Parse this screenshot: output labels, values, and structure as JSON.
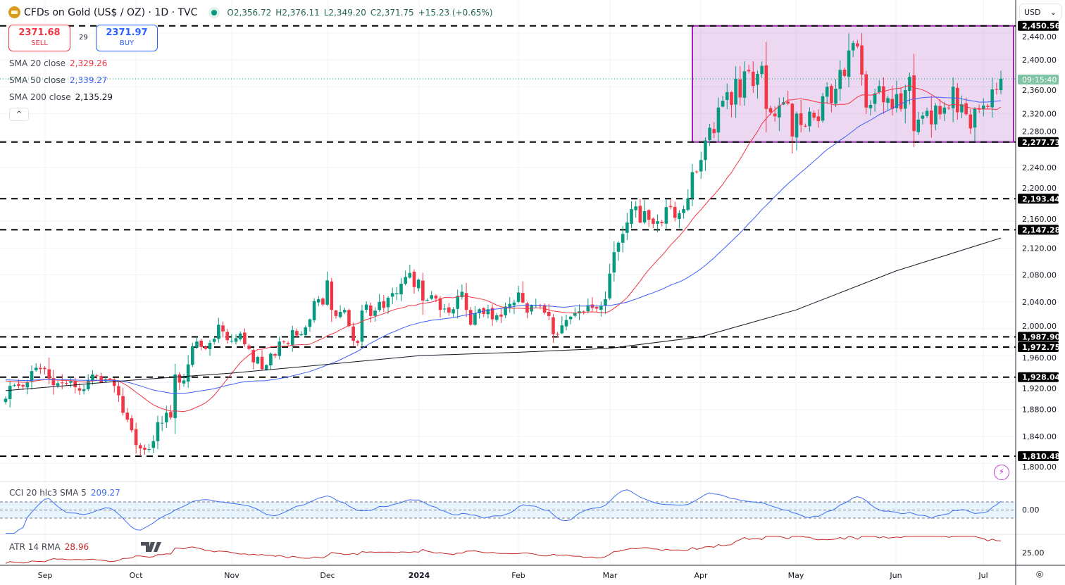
{
  "header": {
    "symbol": "CFDs on Gold (US$ / OZ) · 1D · TVC",
    "open": "O2,356.72",
    "high": "H2,376.11",
    "low": "L2,349.20",
    "close": "C2,371.75",
    "change": "+15.23 (+0.65%)"
  },
  "trade": {
    "sell_price": "2371.68",
    "sell_label": "SELL",
    "spread": "29",
    "buy_price": "2371.97",
    "buy_label": "BUY"
  },
  "legend": {
    "sma20_label": "SMA 20 close",
    "sma20_value": "2,329.26",
    "sma50_label": "SMA 50 close",
    "sma50_value": "2,339.27",
    "sma200_label": "SMA 200 close",
    "sma200_value": "2,135.29",
    "collapse": "^"
  },
  "indicators": {
    "cci_label": "CCI 20 hlc3 SMA 5",
    "cci_value": "209.27",
    "cci_tick": "0.00",
    "atr_label": "ATR 14 RMA",
    "atr_value": "28.96",
    "atr_tick": "25.00"
  },
  "currency": "USD",
  "countdown": "09:15:40",
  "colors": {
    "up": "#089981",
    "down": "#f23645",
    "sma20": "#f23645",
    "sma50": "#3f5efb",
    "sma200": "#131722",
    "cci": "#3f6ff5",
    "atr": "#c62828",
    "zone": "#9c27b0"
  },
  "chart_data": {
    "type": "candlestick",
    "y_ticks": [
      "2,440.00",
      "2,400.00",
      "2,360.00",
      "2,320.00",
      "2,280.00",
      "2,240.00",
      "2,200.00",
      "2,160.00",
      "2,120.00",
      "2,080.00",
      "2,040.00",
      "2,000.00",
      "1,960.00",
      "1,920.00",
      "1,880.00",
      "1,840.00",
      "1,800.00"
    ],
    "x_ticks": [
      "Sep",
      "Oct",
      "Nov",
      "Dec",
      "2024",
      "Feb",
      "Mar",
      "Apr",
      "May",
      "Jun",
      "Jul"
    ],
    "closes": [
      1896,
      1915,
      1916,
      1915,
      1914,
      1920,
      1937,
      1942,
      1940,
      1940,
      1926,
      1916,
      1919,
      1919,
      1919,
      1922,
      1913,
      1908,
      1910,
      1924,
      1932,
      1930,
      1920,
      1925,
      1925,
      1915,
      1901,
      1875,
      1865,
      1849,
      1827,
      1822,
      1820,
      1821,
      1833,
      1861,
      1860,
      1875,
      1868,
      1932,
      1920,
      1923,
      1947,
      1974,
      1981,
      1973,
      1970,
      1979,
      1985,
      2006,
      1996,
      1983,
      1982,
      1986,
      1993,
      1977,
      1970,
      1950,
      1958,
      1940,
      1946,
      1963,
      1960,
      1981,
      1980,
      1977,
      1998,
      1990,
      1992,
      2002,
      2014,
      2041,
      2044,
      2036,
      2072,
      2028,
      2019,
      2025,
      2028,
      2004,
      1982,
      1979,
      2027,
      2036,
      2019,
      2027,
      2040,
      2031,
      2046,
      2053,
      2053,
      2067,
      2077,
      2083,
      2062,
      2073,
      2042,
      2043,
      2050,
      2045,
      2028,
      2030,
      2024,
      2029,
      2049,
      2055,
      2028,
      2006,
      2023,
      2029,
      2022,
      2029,
      2014,
      2020,
      2018,
      2033,
      2037,
      2039,
      2054,
      2039,
      2024,
      2035,
      2035,
      2034,
      2024,
      2019,
      1992,
      1992,
      2005,
      2013,
      2018,
      2024,
      2026,
      2025,
      2035,
      2031,
      2030,
      2034,
      2044,
      2082,
      2114,
      2128,
      2141,
      2158,
      2178,
      2182,
      2158,
      2175,
      2162,
      2156,
      2160,
      2157,
      2181,
      2181,
      2165,
      2172,
      2178,
      2194,
      2233,
      2233,
      2251,
      2280,
      2299,
      2291,
      2329,
      2339,
      2352,
      2333,
      2372,
      2344,
      2383,
      2383,
      2361,
      2379,
      2391,
      2327,
      2322,
      2316,
      2332,
      2337,
      2335,
      2286,
      2320,
      2303,
      2301,
      2323,
      2314,
      2309,
      2346,
      2360,
      2336,
      2357,
      2385,
      2376,
      2414,
      2425,
      2420,
      2378,
      2329,
      2333,
      2350,
      2361,
      2337,
      2343,
      2327,
      2349,
      2327,
      2355,
      2375,
      2294,
      2311,
      2317,
      2324,
      2304,
      2332,
      2319,
      2329,
      2328,
      2360,
      2322,
      2334,
      2319,
      2298,
      2327,
      2326,
      2332,
      2330,
      2356,
      2356,
      2372
    ],
    "sma200_monthly": [
      1908,
      1924,
      1934,
      1947,
      1960,
      1965,
      1971,
      1988,
      2028,
      2086,
      2135
    ],
    "levels": [
      "2,450.56",
      "2,277.73",
      "2,193.44",
      "2,147.28",
      "1,987.90",
      "1,972.75",
      "1,928.04",
      "1,810.48"
    ],
    "range_zone": {
      "top": 2450.56,
      "bottom": 2277.73,
      "from": "Apr",
      "to": "Jul"
    }
  }
}
